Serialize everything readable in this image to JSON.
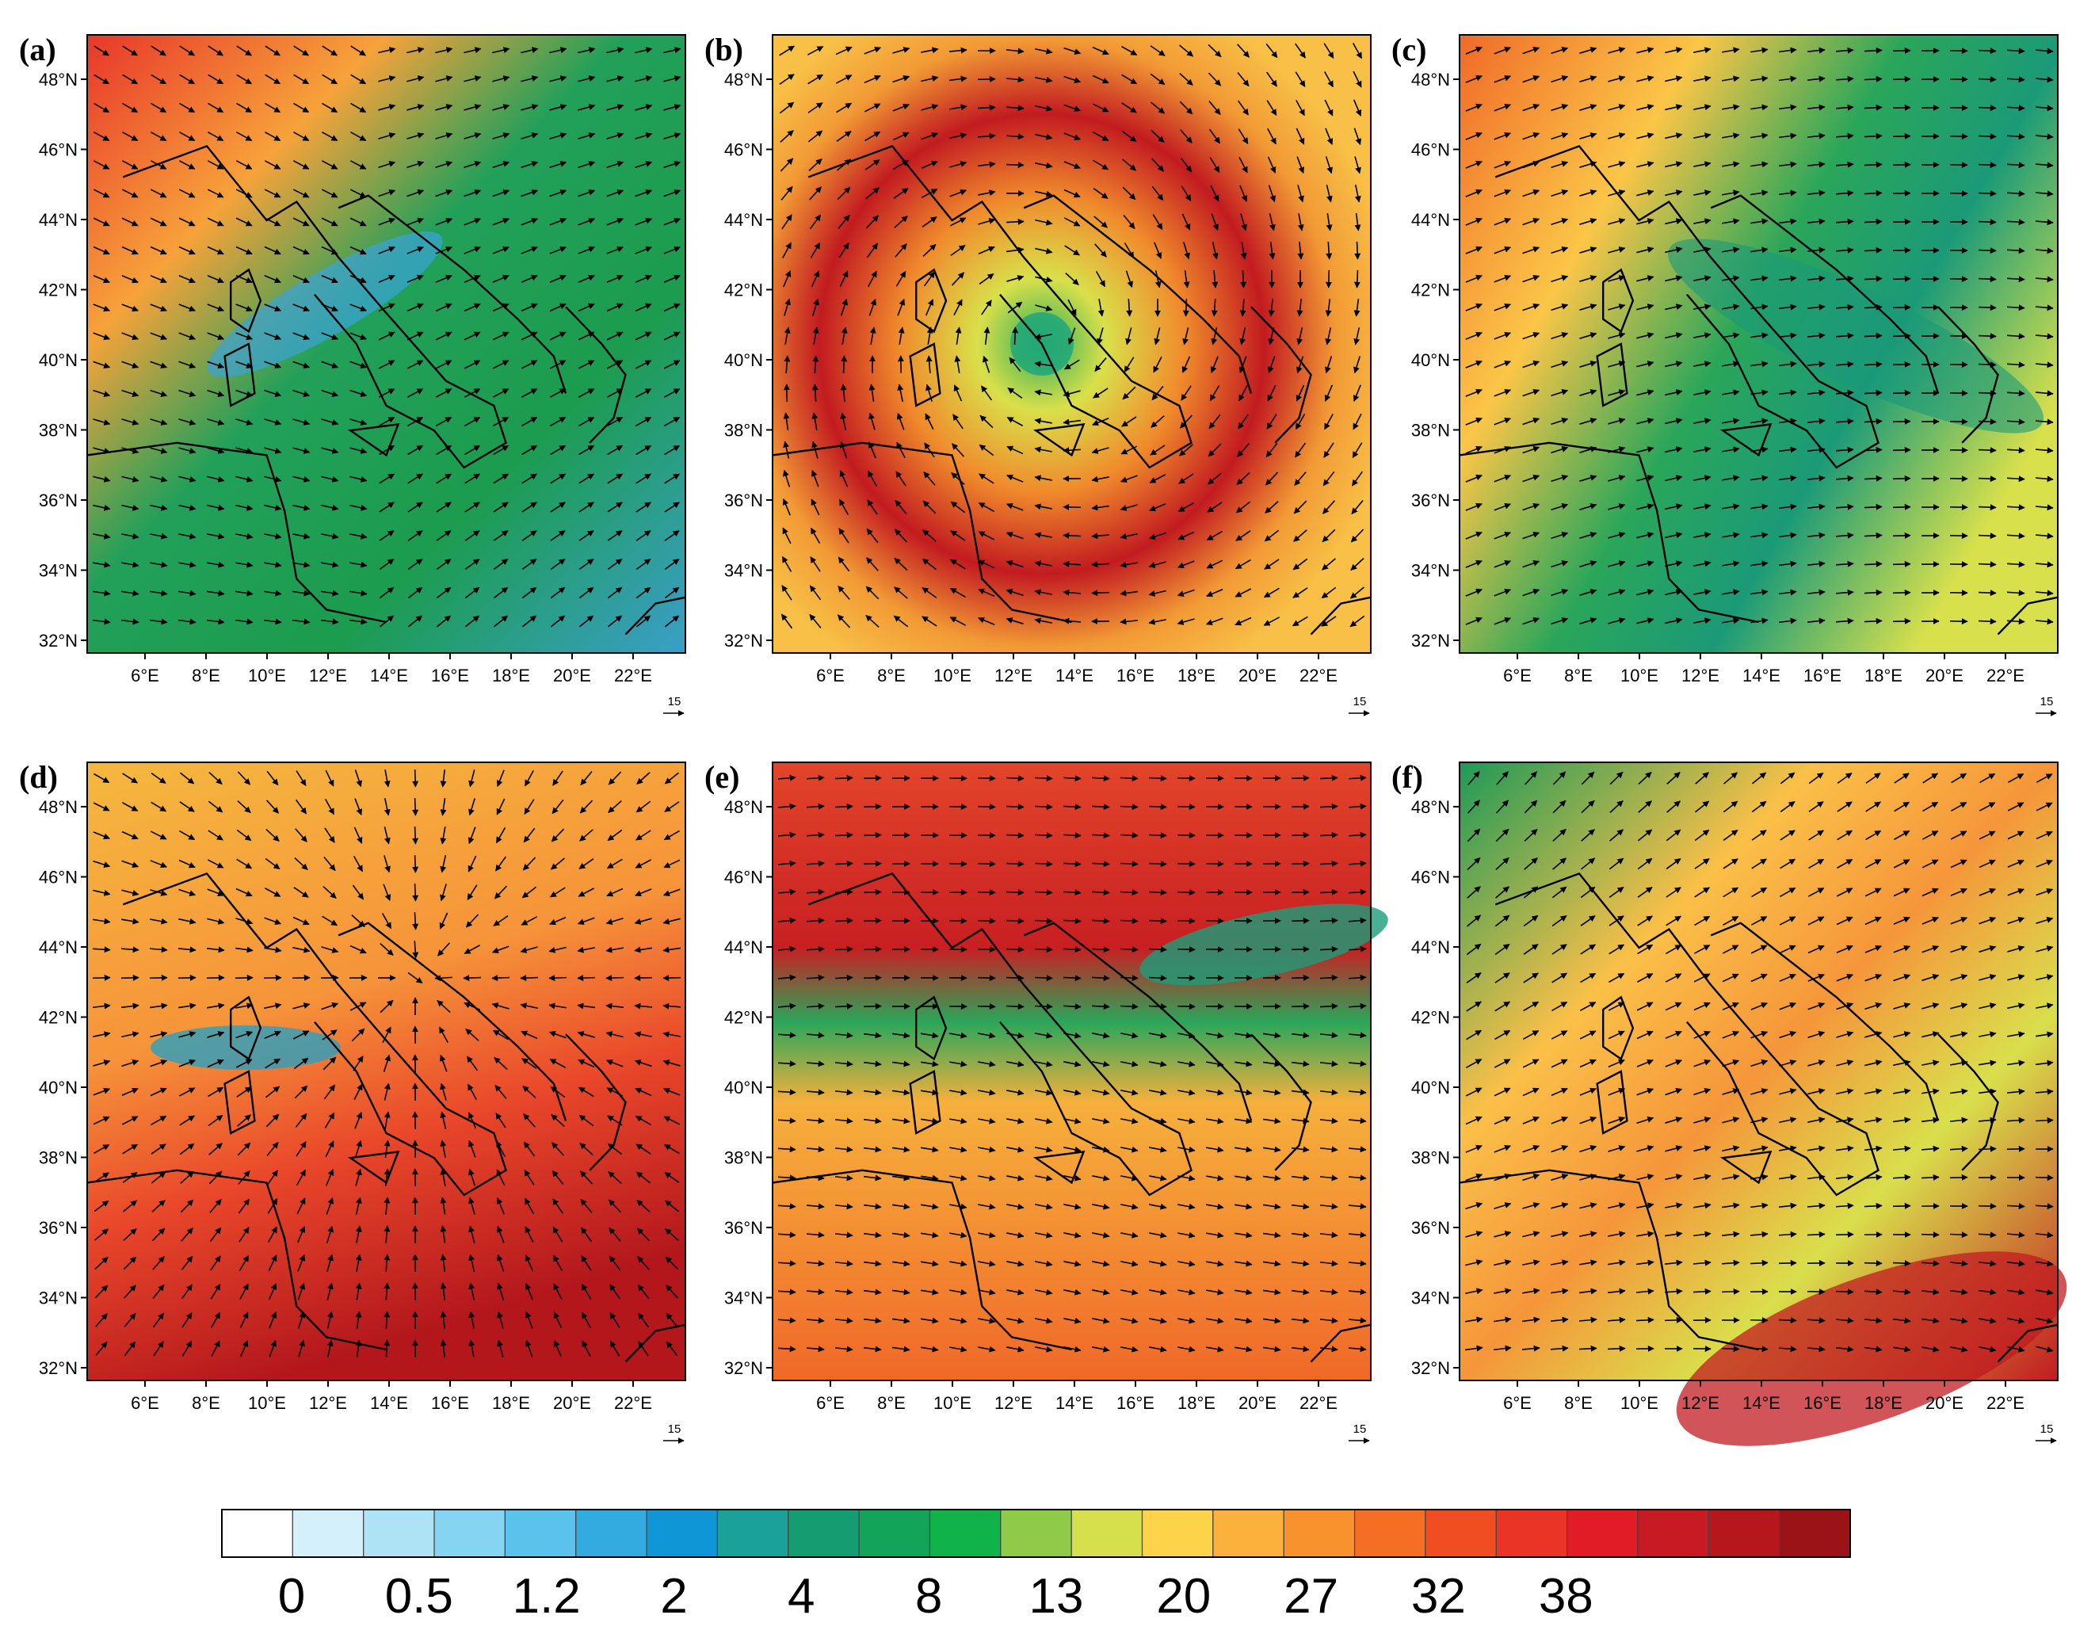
{
  "panels": [
    {
      "label": "(a)",
      "scheme": "a"
    },
    {
      "label": "(b)",
      "scheme": "b"
    },
    {
      "label": "(c)",
      "scheme": "c"
    },
    {
      "label": "(d)",
      "scheme": "d"
    },
    {
      "label": "(e)",
      "scheme": "e"
    },
    {
      "label": "(f)",
      "scheme": "f"
    }
  ],
  "lat_labels": [
    "48°N",
    "46°N",
    "44°N",
    "42°N",
    "40°N",
    "38°N",
    "36°N",
    "34°N",
    "32°N"
  ],
  "lon_labels": [
    "6°E",
    "8°E",
    "10°E",
    "12°E",
    "14°E",
    "16°E",
    "18°E",
    "20°E",
    "22°E"
  ],
  "ref_vector_label": "15",
  "colorbar": {
    "colors": [
      "#ffffff",
      "#d4f0fa",
      "#aee3f6",
      "#84d4f2",
      "#5bc2ec",
      "#33aae0",
      "#0f96d6",
      "#1aa19a",
      "#159c71",
      "#12a55a",
      "#0fb34a",
      "#8fcb48",
      "#d5e04c",
      "#fdd34a",
      "#fbb13b",
      "#f8922d",
      "#f46f23",
      "#f04e22",
      "#ea3425",
      "#e21c26",
      "#c81a22",
      "#b5171c",
      "#9b1316"
    ],
    "labels": [
      "0",
      "0.5",
      "1.2",
      "2",
      "4",
      "8",
      "13",
      "20",
      "27",
      "32",
      "38"
    ]
  }
}
